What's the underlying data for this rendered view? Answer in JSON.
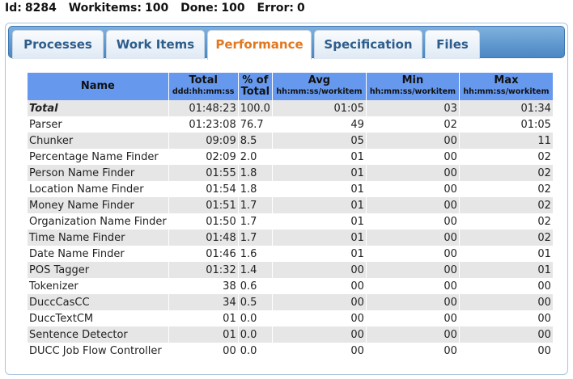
{
  "header": {
    "id_label": "Id:",
    "id_value": "8284",
    "workitems_label": "Workitems:",
    "workitems_value": "100",
    "done_label": "Done:",
    "done_value": "100",
    "error_label": "Error:",
    "error_value": "0"
  },
  "tabs": [
    {
      "label": "Processes",
      "active": false
    },
    {
      "label": "Work Items",
      "active": false
    },
    {
      "label": "Performance",
      "active": true
    },
    {
      "label": "Specification",
      "active": false
    },
    {
      "label": "Files",
      "active": false
    }
  ],
  "table": {
    "columns": [
      {
        "title": "Name",
        "sub": ""
      },
      {
        "title": "Total",
        "sub": "ddd:hh:mm:ss"
      },
      {
        "title": "% of",
        "sub": "Total"
      },
      {
        "title": "Avg",
        "sub": "hh:mm:ss/workitem"
      },
      {
        "title": "Min",
        "sub": "hh:mm:ss/workitem"
      },
      {
        "title": "Max",
        "sub": "hh:mm:ss/workitem"
      }
    ],
    "rows": [
      {
        "name": "Total",
        "total": "01:48:23",
        "pct": "100.0",
        "avg": "01:05",
        "min": "03",
        "max": "01:34"
      },
      {
        "name": "Parser",
        "total": "01:23:08",
        "pct": "76.7",
        "avg": "49",
        "min": "02",
        "max": "01:05"
      },
      {
        "name": "Chunker",
        "total": "09:09",
        "pct": "8.5",
        "avg": "05",
        "min": "00",
        "max": "11"
      },
      {
        "name": "Percentage Name Finder",
        "total": "02:09",
        "pct": "2.0",
        "avg": "01",
        "min": "00",
        "max": "02"
      },
      {
        "name": "Person Name Finder",
        "total": "01:55",
        "pct": "1.8",
        "avg": "01",
        "min": "00",
        "max": "02"
      },
      {
        "name": "Location Name Finder",
        "total": "01:54",
        "pct": "1.8",
        "avg": "01",
        "min": "00",
        "max": "02"
      },
      {
        "name": "Money Name Finder",
        "total": "01:51",
        "pct": "1.7",
        "avg": "01",
        "min": "00",
        "max": "02"
      },
      {
        "name": "Organization Name Finder",
        "total": "01:50",
        "pct": "1.7",
        "avg": "01",
        "min": "00",
        "max": "02"
      },
      {
        "name": "Time Name Finder",
        "total": "01:48",
        "pct": "1.7",
        "avg": "01",
        "min": "00",
        "max": "02"
      },
      {
        "name": "Date Name Finder",
        "total": "01:46",
        "pct": "1.6",
        "avg": "01",
        "min": "00",
        "max": "01"
      },
      {
        "name": "POS Tagger",
        "total": "01:32",
        "pct": "1.4",
        "avg": "00",
        "min": "00",
        "max": "01"
      },
      {
        "name": "Tokenizer",
        "total": "38",
        "pct": "0.6",
        "avg": "00",
        "min": "00",
        "max": "00"
      },
      {
        "name": "DuccCasCC",
        "total": "34",
        "pct": "0.5",
        "avg": "00",
        "min": "00",
        "max": "00"
      },
      {
        "name": "DuccTextCM",
        "total": "01",
        "pct": "0.0",
        "avg": "00",
        "min": "00",
        "max": "00"
      },
      {
        "name": "Sentence Detector",
        "total": "01",
        "pct": "0.0",
        "avg": "00",
        "min": "00",
        "max": "00"
      },
      {
        "name": "DUCC Job Flow Controller",
        "total": "00",
        "pct": "0.0",
        "avg": "00",
        "min": "00",
        "max": "00"
      }
    ]
  },
  "colors": {
    "header_bg": "#6699ee",
    "odd_row": "#e6e6e6",
    "active_tab_text": "#e07820",
    "tab_text": "#2d5d8c"
  }
}
